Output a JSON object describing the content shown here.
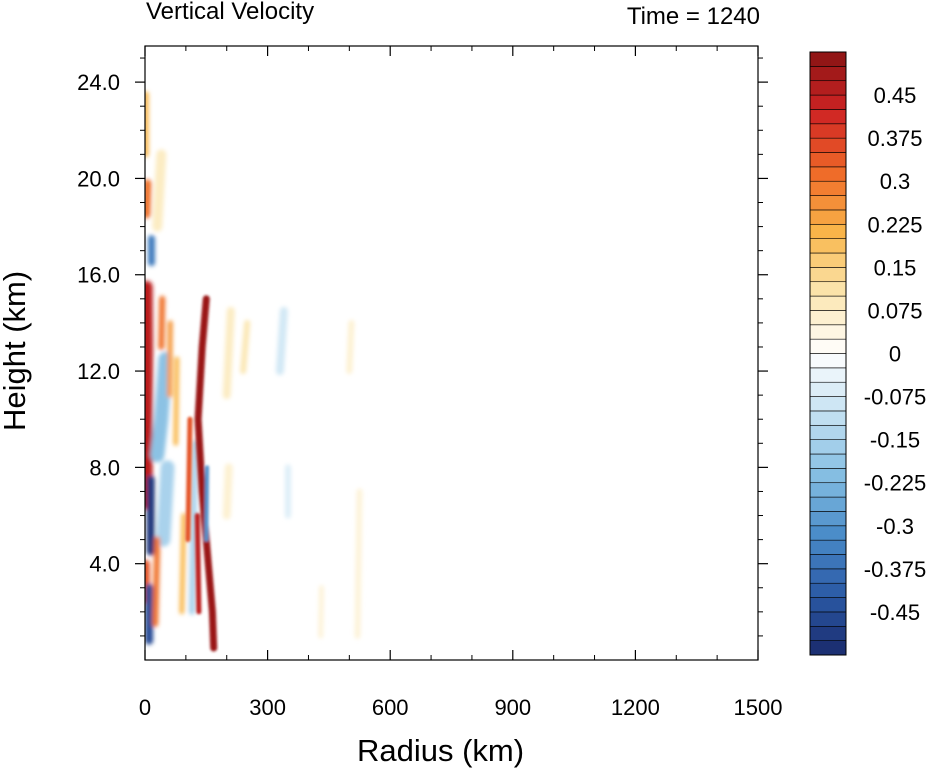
{
  "chart_data": {
    "type": "heatmap",
    "title_left": "Vertical Velocity",
    "title_right": "Time = 1240",
    "xlabel": "Radius (km)",
    "ylabel": "Height (km)",
    "xlim": [
      0,
      1500
    ],
    "ylim": [
      0,
      25.5
    ],
    "x_ticks": [
      0,
      300,
      600,
      900,
      1200,
      1500
    ],
    "x_tick_labels": [
      "0",
      "300",
      "600",
      "900",
      "1200",
      "1500"
    ],
    "y_ticks": [
      4,
      8,
      12,
      16,
      20,
      24
    ],
    "y_tick_labels": [
      "4.0",
      "8.0",
      "12.0",
      "16.0",
      "20.0",
      "24.0"
    ],
    "colorbar": {
      "levels": [
        -0.525,
        -0.5,
        -0.475,
        -0.45,
        -0.425,
        -0.4,
        -0.375,
        -0.35,
        -0.325,
        -0.3,
        -0.275,
        -0.25,
        -0.225,
        -0.2,
        -0.175,
        -0.15,
        -0.125,
        -0.1,
        -0.075,
        -0.05,
        -0.025,
        0,
        0.025,
        0.05,
        0.075,
        0.1,
        0.125,
        0.15,
        0.175,
        0.2,
        0.225,
        0.25,
        0.275,
        0.3,
        0.325,
        0.35,
        0.375,
        0.4,
        0.425,
        0.45,
        0.475,
        0.5,
        0.525
      ],
      "labels": [
        "0.45",
        "0.375",
        "0.3",
        "0.225",
        "0.15",
        "0.075",
        "0",
        "-0.075",
        "-0.15",
        "-0.225",
        "-0.3",
        "-0.375",
        "-0.45"
      ],
      "label_values": [
        0.45,
        0.375,
        0.3,
        0.225,
        0.15,
        0.075,
        0,
        -0.075,
        -0.15,
        -0.225,
        -0.3,
        -0.375,
        -0.45
      ],
      "color_stops": [
        "#1a2a6c",
        "#2b5aa6",
        "#4a8cc8",
        "#86bfe3",
        "#c4e1f2",
        "#ffffff",
        "#fbe6b0",
        "#f9b64a",
        "#ef6a28",
        "#cf2424",
        "#8a1414"
      ]
    },
    "features": [
      {
        "type": "updraft",
        "r": [
          0,
          15
        ],
        "z": [
          6,
          16
        ],
        "w": 0.45
      },
      {
        "type": "updraft",
        "r": [
          100,
          160
        ],
        "z": [
          4,
          15
        ],
        "w": 0.5
      },
      {
        "type": "downdraft",
        "r": [
          5,
          40
        ],
        "z": [
          1,
          8
        ],
        "w": -0.45
      },
      {
        "type": "downdraft",
        "r": [
          20,
          80
        ],
        "z": [
          8,
          13
        ],
        "w": -0.25
      }
    ]
  }
}
